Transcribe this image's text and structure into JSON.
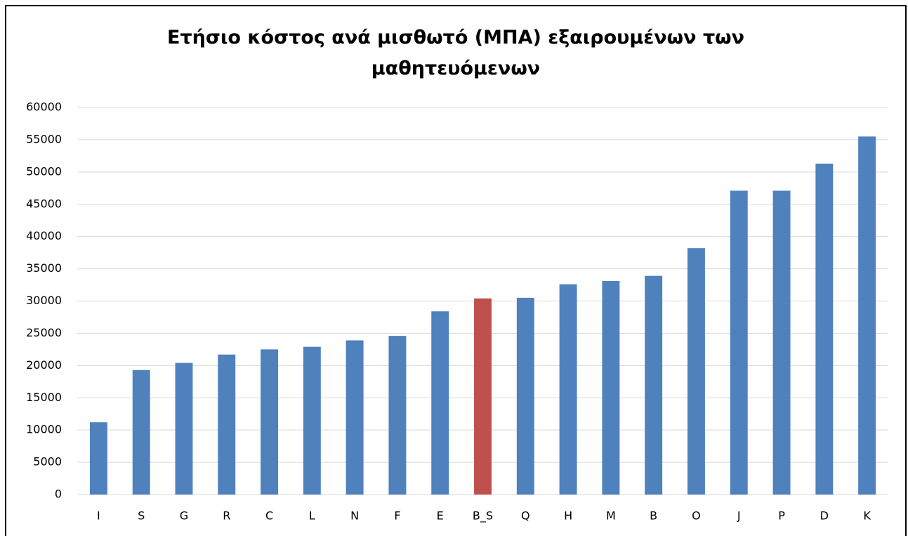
{
  "chart_data": {
    "type": "bar",
    "title": "Ετήσιο κόστος ανά μισθωτό (ΜΠΑ) εξαιρουμένων των μαθητευόμενων",
    "categories": [
      "I",
      "S",
      "G",
      "R",
      "C",
      "L",
      "N",
      "F",
      "E",
      "B_S",
      "Q",
      "H",
      "M",
      "B",
      "O",
      "J",
      "P",
      "D",
      "K"
    ],
    "values": [
      11200,
      19300,
      20400,
      21700,
      22500,
      22900,
      23900,
      24600,
      28400,
      30400,
      30500,
      32600,
      33100,
      33900,
      38200,
      47100,
      47100,
      51300,
      55500
    ],
    "colors": [
      "#4f81bd",
      "#4f81bd",
      "#4f81bd",
      "#4f81bd",
      "#4f81bd",
      "#4f81bd",
      "#4f81bd",
      "#4f81bd",
      "#4f81bd",
      "#c0504d",
      "#4f81bd",
      "#4f81bd",
      "#4f81bd",
      "#4f81bd",
      "#4f81bd",
      "#4f81bd",
      "#4f81bd",
      "#4f81bd",
      "#4f81bd"
    ],
    "ylim": [
      0,
      60000
    ],
    "yticks": [
      0,
      5000,
      10000,
      15000,
      20000,
      25000,
      30000,
      35000,
      40000,
      45000,
      50000,
      55000,
      60000
    ],
    "grid": true
  }
}
